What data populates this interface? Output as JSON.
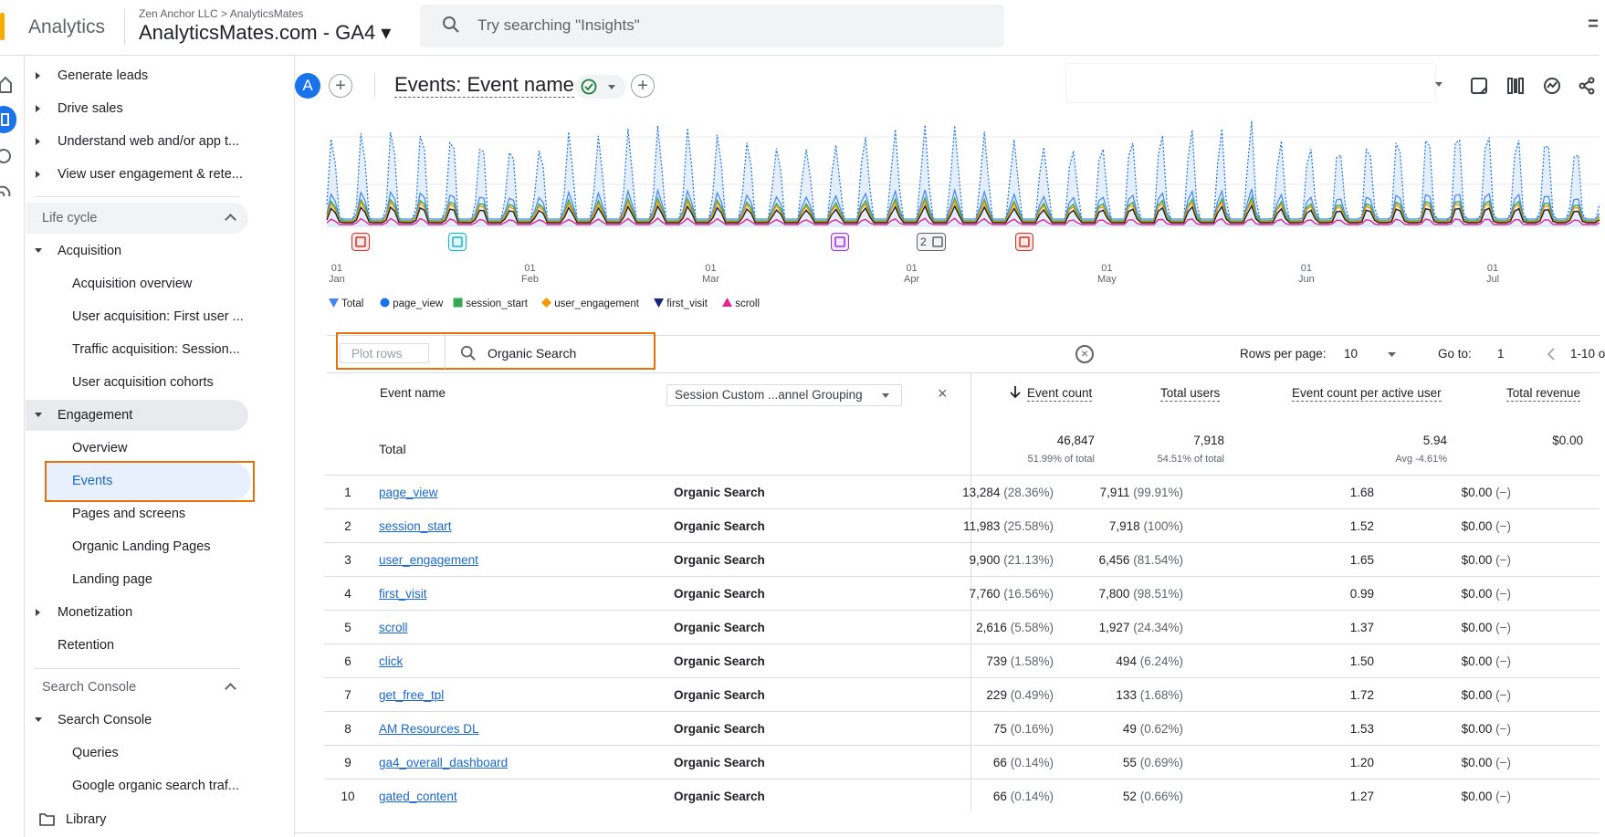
{
  "header": {
    "app_name": "Analytics",
    "breadcrumb": "Zen Anchor LLC > AnalyticsMates",
    "property": "AnalyticsMates.com - GA4 ▾",
    "search_placeholder": "Try searching \"Insights\""
  },
  "nav": {
    "top_items": [
      "Generate leads",
      "Drive sales",
      "Understand web and/or app t...",
      "View user engagement & rete..."
    ],
    "lifecycle_label": "Life cycle",
    "acquisition_label": "Acquisition",
    "acquisition_items": [
      "Acquisition overview",
      "User acquisition: First user ...",
      "Traffic acquisition: Session...",
      "User acquisition cohorts"
    ],
    "engagement_label": "Engagement",
    "engagement_items": [
      "Overview",
      "Events",
      "Pages and screens",
      "Organic Landing Pages",
      "Landing page"
    ],
    "monetization_label": "Monetization",
    "retention_label": "Retention",
    "search_console_section": "Search Console",
    "search_console_label": "Search Console",
    "search_console_items": [
      "Queries",
      "Google organic search traf..."
    ],
    "library_label": "Library"
  },
  "report": {
    "avatar_letter": "A",
    "title": "Events: Event name",
    "plus": "+"
  },
  "chart": {
    "x_ticks": [
      {
        "day": "01",
        "month": "Jan"
      },
      {
        "day": "01",
        "month": "Feb"
      },
      {
        "day": "01",
        "month": "Mar"
      },
      {
        "day": "01",
        "month": "Apr"
      },
      {
        "day": "01",
        "month": "May"
      },
      {
        "day": "01",
        "month": "Jun"
      },
      {
        "day": "01",
        "month": "Jul"
      }
    ],
    "legend": [
      {
        "name": "Total",
        "color": "#4285f4",
        "shape": "drop"
      },
      {
        "name": "page_view",
        "color": "#1a73e8",
        "shape": "circle"
      },
      {
        "name": "session_start",
        "color": "#34a853",
        "shape": "square"
      },
      {
        "name": "user_engagement",
        "color": "#f29900",
        "shape": "diamond"
      },
      {
        "name": "first_visit",
        "color": "#1a237e",
        "shape": "triangle-down"
      },
      {
        "name": "scroll",
        "color": "#e52592",
        "shape": "triangle-up"
      }
    ],
    "annotation_count": "2"
  },
  "table": {
    "plot_rows": "Plot rows",
    "search_value": "Organic Search",
    "rows_per_page_label": "Rows per page:",
    "rows_per_page": "10",
    "goto_label": "Go to:",
    "goto_value": "1",
    "range": "1-10 o",
    "col_event_name": "Event name",
    "dimension_select": "Session Custom ...annel Grouping",
    "col_event_count": "Event count",
    "col_total_users": "Total users",
    "col_per_user": "Event count per active user",
    "col_revenue": "Total revenue",
    "total_label": "Total",
    "totals": {
      "event_count": "46,847",
      "event_count_sub": "51.99% of total",
      "total_users": "7,918",
      "total_users_sub": "54.51% of total",
      "per_user": "5.94",
      "per_user_sub": "Avg -4.61%",
      "revenue": "$0.00"
    },
    "rows": [
      {
        "idx": "1",
        "name": "page_view",
        "dim": "Organic Search",
        "count": "13,284",
        "count_pct": "(28.36%)",
        "users": "7,911",
        "users_pct": "(99.91%)",
        "per_user": "1.68",
        "revenue": "$0.00",
        "rev_pct": "(−)"
      },
      {
        "idx": "2",
        "name": "session_start",
        "dim": "Organic Search",
        "count": "11,983",
        "count_pct": "(25.58%)",
        "users": "7,918",
        "users_pct": "(100%)",
        "per_user": "1.52",
        "revenue": "$0.00",
        "rev_pct": "(−)"
      },
      {
        "idx": "3",
        "name": "user_engagement",
        "dim": "Organic Search",
        "count": "9,900",
        "count_pct": "(21.13%)",
        "users": "6,456",
        "users_pct": "(81.54%)",
        "per_user": "1.65",
        "revenue": "$0.00",
        "rev_pct": "(−)"
      },
      {
        "idx": "4",
        "name": "first_visit",
        "dim": "Organic Search",
        "count": "7,760",
        "count_pct": "(16.56%)",
        "users": "7,800",
        "users_pct": "(98.51%)",
        "per_user": "0.99",
        "revenue": "$0.00",
        "rev_pct": "(−)"
      },
      {
        "idx": "5",
        "name": "scroll",
        "dim": "Organic Search",
        "count": "2,616",
        "count_pct": "(5.58%)",
        "users": "1,927",
        "users_pct": "(24.34%)",
        "per_user": "1.37",
        "revenue": "$0.00",
        "rev_pct": "(−)"
      },
      {
        "idx": "6",
        "name": "click",
        "dim": "Organic Search",
        "count": "739",
        "count_pct": "(1.58%)",
        "users": "494",
        "users_pct": "(6.24%)",
        "per_user": "1.50",
        "revenue": "$0.00",
        "rev_pct": "(−)"
      },
      {
        "idx": "7",
        "name": "get_free_tpl",
        "dim": "Organic Search",
        "count": "229",
        "count_pct": "(0.49%)",
        "users": "133",
        "users_pct": "(1.68%)",
        "per_user": "1.72",
        "revenue": "$0.00",
        "rev_pct": "(−)"
      },
      {
        "idx": "8",
        "name": "AM Resources DL",
        "dim": "Organic Search",
        "count": "75",
        "count_pct": "(0.16%)",
        "users": "49",
        "users_pct": "(0.62%)",
        "per_user": "1.53",
        "revenue": "$0.00",
        "rev_pct": "(−)"
      },
      {
        "idx": "9",
        "name": "ga4_overall_dashboard",
        "dim": "Organic Search",
        "count": "66",
        "count_pct": "(0.14%)",
        "users": "55",
        "users_pct": "(0.69%)",
        "per_user": "1.20",
        "revenue": "$0.00",
        "rev_pct": "(−)"
      },
      {
        "idx": "10",
        "name": "gated_content",
        "dim": "Organic Search",
        "count": "66",
        "count_pct": "(0.14%)",
        "users": "52",
        "users_pct": "(0.66%)",
        "per_user": "1.27",
        "revenue": "$0.00",
        "rev_pct": "(−)"
      }
    ]
  }
}
